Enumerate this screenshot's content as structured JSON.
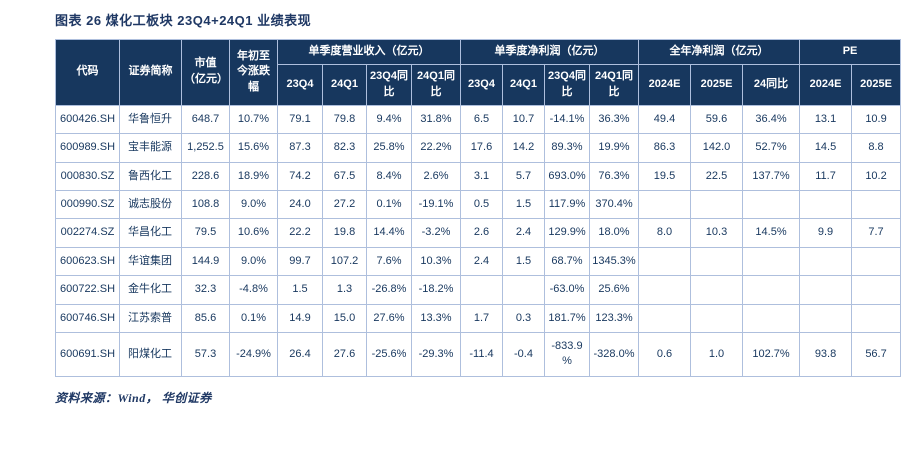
{
  "title": "图表 26  煤化工板块 23Q4+24Q1 业绩表现",
  "source_note": "资料来源：Wind， 华创证券",
  "colors": {
    "header_bg": "#17375e",
    "body_text": "#17375e",
    "border": "#aebfdd",
    "title_text": "#1f3864"
  },
  "chart_data": {
    "type": "table",
    "title": "煤化工板块 23Q4+24Q1 业绩表现",
    "header": {
      "code": "代码",
      "name": "证券简称",
      "market_cap": "市值（亿元）",
      "ytd_change": "年初至今涨跌幅",
      "group_revenue": "单季度营业收入（亿元）",
      "group_profit": "单季度净利润（亿元）",
      "group_annual": "全年净利润（亿元）",
      "group_pe": "PE",
      "sub": [
        "23Q4",
        "24Q1",
        "23Q4同比",
        "24Q1同比",
        "23Q4",
        "24Q1",
        "23Q4同比",
        "24Q1同比",
        "2024E",
        "2025E",
        "24同比",
        "2024E",
        "2025E"
      ]
    },
    "rows": [
      [
        "600426.SH",
        "华鲁恒升",
        "648.7",
        "10.7%",
        "79.1",
        "79.8",
        "9.4%",
        "31.8%",
        "6.5",
        "10.7",
        "-14.1%",
        "36.3%",
        "49.4",
        "59.6",
        "36.4%",
        "13.1",
        "10.9"
      ],
      [
        "600989.SH",
        "宝丰能源",
        "1,252.5",
        "15.6%",
        "87.3",
        "82.3",
        "25.8%",
        "22.2%",
        "17.6",
        "14.2",
        "89.3%",
        "19.9%",
        "86.3",
        "142.0",
        "52.7%",
        "14.5",
        "8.8"
      ],
      [
        "000830.SZ",
        "鲁西化工",
        "228.6",
        "18.9%",
        "74.2",
        "67.5",
        "8.4%",
        "2.6%",
        "3.1",
        "5.7",
        "693.0%",
        "76.3%",
        "19.5",
        "22.5",
        "137.7%",
        "11.7",
        "10.2"
      ],
      [
        "000990.SZ",
        "诚志股份",
        "108.8",
        "9.0%",
        "24.0",
        "27.2",
        "0.1%",
        "-19.1%",
        "0.5",
        "1.5",
        "117.9%",
        "370.4%",
        "",
        "",
        "",
        "",
        ""
      ],
      [
        "002274.SZ",
        "华昌化工",
        "79.5",
        "10.6%",
        "22.2",
        "19.8",
        "14.4%",
        "-3.2%",
        "2.6",
        "2.4",
        "129.9%",
        "18.0%",
        "8.0",
        "10.3",
        "14.5%",
        "9.9",
        "7.7"
      ],
      [
        "600623.SH",
        "华谊集团",
        "144.9",
        "9.0%",
        "99.7",
        "107.2",
        "7.6%",
        "10.3%",
        "2.4",
        "1.5",
        "68.7%",
        "1345.3%",
        "",
        "",
        "",
        "",
        ""
      ],
      [
        "600722.SH",
        "金牛化工",
        "32.3",
        "-4.8%",
        "1.5",
        "1.3",
        "-26.8%",
        "-18.2%",
        "",
        "",
        "-63.0%",
        "25.6%",
        "",
        "",
        "",
        "",
        ""
      ],
      [
        "600746.SH",
        "江苏索普",
        "85.6",
        "0.1%",
        "14.9",
        "15.0",
        "27.6%",
        "13.3%",
        "1.7",
        "0.3",
        "181.7%",
        "123.3%",
        "",
        "",
        "",
        "",
        ""
      ],
      [
        "600691.SH",
        "阳煤化工",
        "57.3",
        "-24.9%",
        "26.4",
        "27.6",
        "-25.6%",
        "-29.3%",
        "-11.4",
        "-0.4",
        "-833.9%",
        "-328.0%",
        "0.6",
        "1.0",
        "102.7%",
        "93.8",
        "56.7"
      ]
    ]
  }
}
